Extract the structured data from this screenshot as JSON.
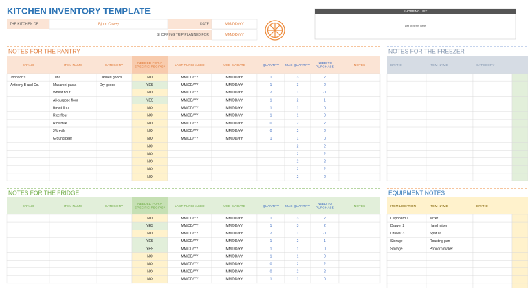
{
  "header": {
    "title": "KITCHEN INVENTORY TEMPLATE",
    "kitchen_of_label": "THE KITCHEN OF",
    "kitchen_of": "Bjorn Covey",
    "date_label": "DATE",
    "date": "MM/DD/YY",
    "trip_label": "SHOPPING TRIP PLANNED FOR",
    "trip_date": "MM/DD/YY"
  },
  "shopping_list": {
    "title": "SHOPPING LIST",
    "placeholder": "List of items here"
  },
  "pantry": {
    "title": "NOTES FOR THE PANTRY",
    "columns": [
      "BRAND",
      "ITEM NAME",
      "CATEGORY",
      "NEEDED FOR A SPECIFIC RECIPE?",
      "LAST PURCHASED",
      "USE-BY DATE",
      "QUANTITY",
      "MAX QUANTITY",
      "NEED TO PURCHASE",
      "NOTES"
    ],
    "rows": [
      [
        "Johnson's",
        "Tuna",
        "Canned goods",
        "NO",
        "MM/DD/YY",
        "MM/DD/YY",
        1,
        3,
        2,
        null
      ],
      [
        "Anthony B and Co.",
        "Macaroni pasta",
        "Dry goods",
        "YES",
        "MM/DD/YY",
        "MM/DD/YY",
        1,
        3,
        2,
        null
      ],
      [
        null,
        "Wheat flour",
        null,
        "NO",
        "MM/DD/YY",
        "MM/DD/YY",
        2,
        1,
        -1,
        null
      ],
      [
        null,
        "All-purpose flour",
        null,
        "YES",
        "MM/DD/YY",
        "MM/DD/YY",
        1,
        2,
        1,
        null
      ],
      [
        null,
        "Bread flour",
        null,
        "NO",
        "MM/DD/YY",
        "MM/DD/YY",
        1,
        1,
        0,
        null
      ],
      [
        null,
        "Rice flour",
        null,
        "NO",
        "MM/DD/YY",
        "MM/DD/YY",
        1,
        1,
        0,
        null
      ],
      [
        null,
        "Rice milk",
        null,
        "NO",
        "MM/DD/YY",
        "MM/DD/YY",
        0,
        2,
        2,
        null
      ],
      [
        null,
        "2% milk",
        null,
        "NO",
        "MM/DD/YY",
        "MM/DD/YY",
        0,
        2,
        2,
        null
      ],
      [
        null,
        "Ground beef",
        null,
        "NO",
        "MM/DD/YY",
        "MM/DD/YY",
        1,
        1,
        0,
        null
      ],
      [
        null,
        null,
        null,
        "NO",
        null,
        null,
        null,
        2,
        2,
        null
      ],
      [
        null,
        null,
        null,
        "NO",
        null,
        null,
        null,
        2,
        2,
        null
      ],
      [
        null,
        null,
        null,
        "NO",
        null,
        null,
        null,
        2,
        2,
        null
      ],
      [
        null,
        null,
        null,
        "NO",
        null,
        null,
        null,
        2,
        2,
        null
      ],
      [
        null,
        null,
        null,
        "NO",
        null,
        null,
        null,
        2,
        2,
        null
      ]
    ]
  },
  "fridge": {
    "title": "NOTES FOR THE FRIDGE",
    "columns": [
      "BRAND",
      "ITEM NAME",
      "CATEGORY",
      "NEEDED FOR A SPECIFIC RECIPE?",
      "LAST PURCHASED",
      "USE-BY DATE",
      "QUANTITY",
      "MAX QUANTITY",
      "NEED TO PURCHASE",
      "NOTES"
    ],
    "rows": [
      [
        null,
        null,
        null,
        "NO",
        "MM/DD/YY",
        "MM/DD/YY",
        1,
        3,
        2,
        null
      ],
      [
        null,
        null,
        null,
        "YES",
        "MM/DD/YY",
        "MM/DD/YY",
        1,
        3,
        2,
        null
      ],
      [
        null,
        null,
        null,
        "NO",
        "MM/DD/YY",
        "MM/DD/YY",
        2,
        1,
        -1,
        null
      ],
      [
        null,
        null,
        null,
        "YES",
        "MM/DD/YY",
        "MM/DD/YY",
        1,
        2,
        1,
        null
      ],
      [
        null,
        null,
        null,
        "YES",
        "MM/DD/YY",
        "MM/DD/YY",
        1,
        1,
        0,
        null
      ],
      [
        null,
        null,
        null,
        "NO",
        "MM/DD/YY",
        "MM/DD/YY",
        1,
        1,
        0,
        null
      ],
      [
        null,
        null,
        null,
        "NO",
        "MM/DD/YY",
        "MM/DD/YY",
        0,
        2,
        2,
        null
      ],
      [
        null,
        null,
        null,
        "NO",
        "MM/DD/YY",
        "MM/DD/YY",
        0,
        2,
        2,
        null
      ],
      [
        null,
        null,
        null,
        "NO",
        "MM/DD/YY",
        "MM/DD/YY",
        1,
        1,
        0,
        null
      ]
    ]
  },
  "freezer": {
    "title": "NOTES FOR THE FREEZER",
    "columns": [
      "BRAND",
      "ITEM NAME",
      "CATEGORY"
    ]
  },
  "equipment": {
    "title": "EQUIPMENT NOTES",
    "columns": [
      "ITEM LOCATION",
      "ITEM NAME",
      "BRAND"
    ],
    "rows": [
      [
        "Cupboard 1",
        "Mixer"
      ],
      [
        "Drawer 2",
        "Hand mixer"
      ],
      [
        "Drawer 3",
        "Spatula"
      ],
      [
        "Storage",
        "Roasting pan"
      ],
      [
        "Storage",
        "Popcorn maker"
      ]
    ]
  }
}
